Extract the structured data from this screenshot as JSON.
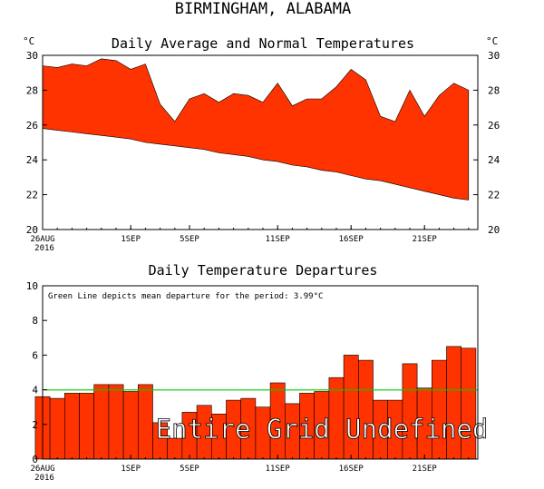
{
  "page": {
    "main_title": "BIRMINGHAM, ALABAMA"
  },
  "chart_data": [
    {
      "type": "area",
      "title": "Daily Average and Normal Temperatures",
      "ylabel_left": "°C",
      "ylabel_right": "°C",
      "ylim": [
        20,
        30
      ],
      "yticks": [
        20,
        22,
        24,
        26,
        28,
        30
      ],
      "xticks": [
        {
          "day": 0,
          "label": "26AUG",
          "sublabel": "2016"
        },
        {
          "day": 6,
          "label": "1SEP"
        },
        {
          "day": 10,
          "label": "5SEP"
        },
        {
          "day": 16,
          "label": "11SEP"
        },
        {
          "day": 21,
          "label": "16SEP"
        },
        {
          "day": 26,
          "label": "21SEP"
        }
      ],
      "fill_color": "#ff3300",
      "series": [
        {
          "values": [
            29.4,
            29.3,
            29.5,
            29.4,
            29.8,
            29.7,
            29.2,
            29.5,
            27.2,
            26.2,
            27.5,
            27.8,
            27.3,
            27.8,
            27.7,
            27.3,
            28.4,
            27.1,
            27.5,
            27.5,
            28.2,
            29.2,
            28.6,
            26.5,
            26.2,
            28.0,
            26.5,
            27.7,
            28.4,
            28.0
          ]
        },
        {
          "values": [
            25.8,
            25.7,
            25.6,
            25.5,
            25.4,
            25.3,
            25.2,
            25.0,
            24.9,
            24.8,
            24.7,
            24.6,
            24.4,
            24.3,
            24.2,
            24.0,
            23.9,
            23.7,
            23.6,
            23.4,
            23.3,
            23.1,
            22.9,
            22.8,
            22.6,
            22.4,
            22.2,
            22.0,
            21.8,
            21.7
          ]
        }
      ]
    },
    {
      "type": "bar",
      "title": "Daily Temperature Departures",
      "ylim": [
        0,
        10
      ],
      "yticks": [
        0,
        2,
        4,
        6,
        8,
        10
      ],
      "xticks": [
        {
          "day": 0,
          "label": "26AUG",
          "sublabel": "2016"
        },
        {
          "day": 6,
          "label": "1SEP"
        },
        {
          "day": 10,
          "label": "5SEP"
        },
        {
          "day": 16,
          "label": "11SEP"
        },
        {
          "day": 21,
          "label": "16SEP"
        },
        {
          "day": 26,
          "label": "21SEP"
        }
      ],
      "annotation": "Green Line depicts mean departure for the period: 3.99°C",
      "mean_departure": 3.99,
      "overlay_text": "Entire Grid Undefined",
      "bar_color": "#ff3300",
      "mean_line_color": "#00cc00",
      "values": [
        3.6,
        3.5,
        3.8,
        3.8,
        4.3,
        4.3,
        3.9,
        4.3,
        2.1,
        1.2,
        2.7,
        3.1,
        2.6,
        3.4,
        3.5,
        3.0,
        4.4,
        3.2,
        3.8,
        3.9,
        4.7,
        6.0,
        5.7,
        3.4,
        3.4,
        5.5,
        4.1,
        5.7,
        6.5,
        6.4
      ]
    }
  ]
}
